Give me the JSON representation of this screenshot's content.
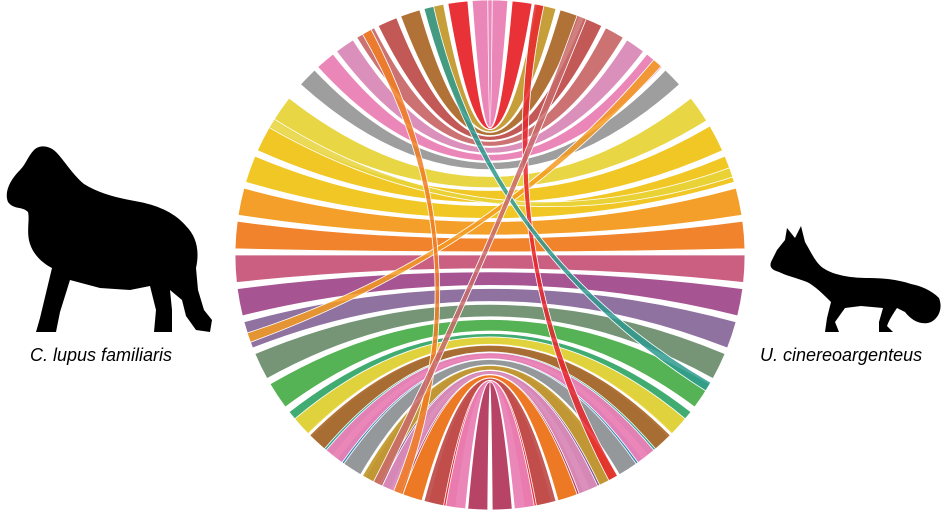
{
  "species": {
    "left": "C. lupus familiaris",
    "right": "U. cinereoargenteus"
  },
  "icons": {
    "left": "dog-silhouette-icon",
    "right": "fox-silhouette-icon"
  },
  "palette": [
    "#e8262d",
    "#999999",
    "#d98ab8",
    "#ea7fb5",
    "#c96a6a",
    "#c0504d",
    "#ad6a2c",
    "#c49a2f",
    "#e8d43a",
    "#f0c419",
    "#f39a1e",
    "#f07c22",
    "#c8567a",
    "#a24b8c",
    "#8a6a9c",
    "#6f8f6f",
    "#4cae4c",
    "#37a86a",
    "#2e9a8f",
    "#2f7fb3",
    "#7b4f8a",
    "#b33a5e",
    "#e84d8a",
    "#8c8c8c"
  ],
  "chords": [
    {
      "a": 0.0,
      "b": 180.0,
      "w": 4,
      "c": "#e8262d"
    },
    {
      "a": 8,
      "b": 172,
      "w": 10,
      "c": "#999999"
    },
    {
      "a": 18,
      "b": 162,
      "w": 12,
      "c": "#d98ab8"
    },
    {
      "a": 30,
      "b": 150,
      "w": 12,
      "c": "#ea7fb5"
    },
    {
      "a": 42,
      "b": 138,
      "w": 10,
      "c": "#c96a6a"
    },
    {
      "a": 52,
      "b": 128,
      "w": 8,
      "c": "#c0504d"
    },
    {
      "a": 60,
      "b": 120,
      "w": 10,
      "c": "#ad6a2c"
    },
    {
      "a": 68,
      "b": 112,
      "w": 8,
      "c": "#c49a2f"
    },
    {
      "a": 76,
      "b": 104,
      "w": 10,
      "c": "#e8d43a"
    },
    {
      "a": 84,
      "b": 96,
      "w": 8,
      "c": "#f0c419"
    }
  ]
}
